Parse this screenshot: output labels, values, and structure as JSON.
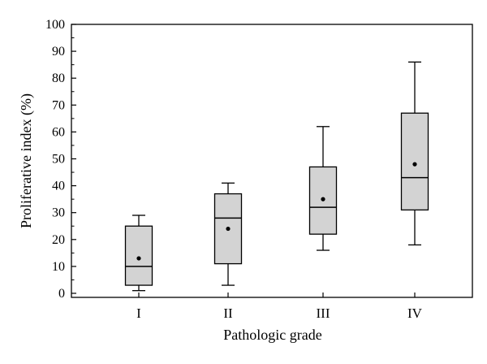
{
  "chart_data": {
    "type": "box",
    "xlabel": "Pathologic grade",
    "ylabel": "Proliferative index (%)",
    "ylim": [
      0,
      100
    ],
    "yticks": [
      0,
      10,
      20,
      30,
      40,
      50,
      60,
      70,
      80,
      90,
      100
    ],
    "grid": false,
    "categories": [
      "I",
      "II",
      "III",
      "IV"
    ],
    "boxes": [
      {
        "category": "I",
        "min": 1,
        "q1": 3,
        "median": 10,
        "q3": 25,
        "max": 29,
        "mean": 13
      },
      {
        "category": "II",
        "min": 3,
        "q1": 11,
        "median": 28,
        "q3": 37,
        "max": 41,
        "mean": 24
      },
      {
        "category": "III",
        "min": 16,
        "q1": 22,
        "median": 32,
        "q3": 47,
        "max": 62,
        "mean": 35
      },
      {
        "category": "IV",
        "min": 18,
        "q1": 31,
        "median": 43,
        "q3": 67,
        "max": 86,
        "mean": 48
      }
    ],
    "colors": {
      "box_fill": "#d3d3d3",
      "stroke": "#000000"
    }
  }
}
